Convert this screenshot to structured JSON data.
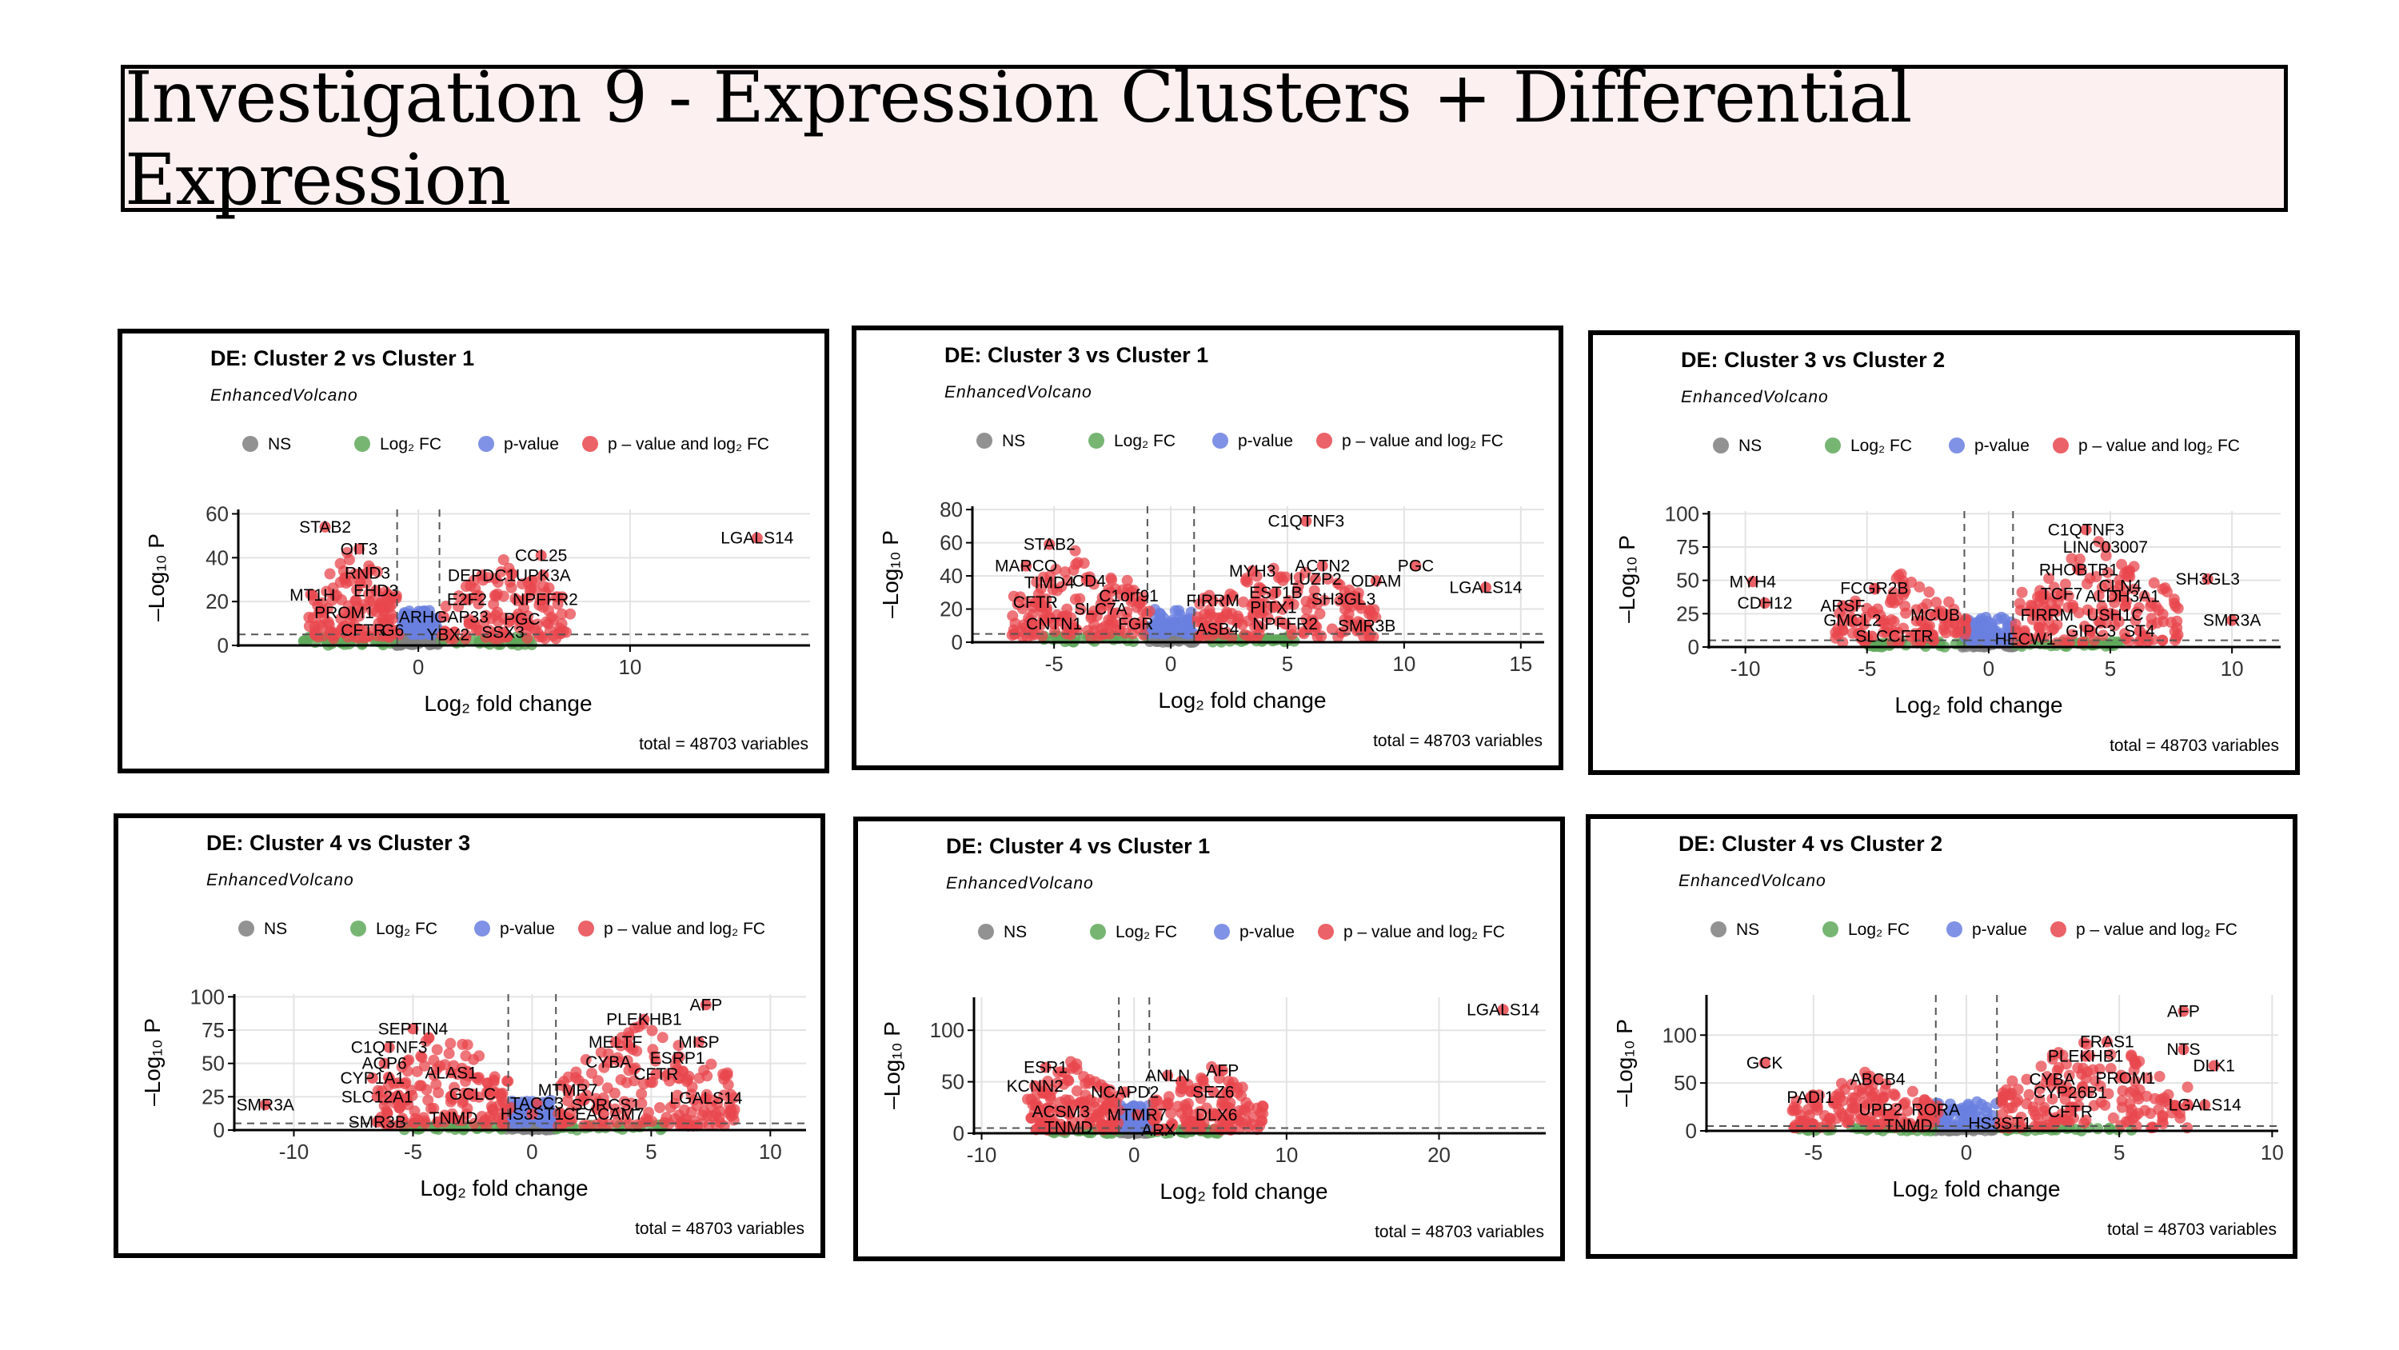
{
  "page": {
    "title": "Investigation 9 - Expression Clusters + Differential Expression"
  },
  "legend": {
    "items": [
      {
        "label": "NS",
        "color": "#7f7f7f"
      },
      {
        "label": "Log₂ FC",
        "color": "#5fa85a"
      },
      {
        "label": "p-value",
        "color": "#6a7fe0"
      },
      {
        "label": "p – value and log₂ FC",
        "color": "#e8474d"
      }
    ]
  },
  "chart_data": [
    {
      "type": "scatter",
      "title": "DE: Cluster 2 vs Cluster 1",
      "subtitle": "EnhancedVolcano",
      "xlabel": "Log₂ fold change",
      "ylabel": "–Log₁₀ P",
      "caption": "total = 48703 variables",
      "xlim": [
        -8.5,
        18.5
      ],
      "ylim": [
        0,
        62
      ],
      "xticks": [
        0,
        10
      ],
      "yticks": [
        0,
        20,
        40,
        60
      ],
      "fc_cutoff": 1,
      "p_cutoff_y": 5,
      "clusters": [
        {
          "x": [
            -5.2,
            -0.9
          ],
          "y": [
            3,
            46
          ],
          "n": 130
        },
        {
          "x": [
            1.1,
            7.2
          ],
          "y": [
            3,
            40
          ],
          "n": 120
        }
      ],
      "labels": [
        {
          "text": "STAB2",
          "x": -4.4,
          "y": 54
        },
        {
          "text": "OIT3",
          "x": -2.8,
          "y": 44
        },
        {
          "text": "RND3",
          "x": -2.4,
          "y": 33
        },
        {
          "text": "EHD3",
          "x": -2.0,
          "y": 25
        },
        {
          "text": "MT1H",
          "x": -5.0,
          "y": 23
        },
        {
          "text": "PROM1",
          "x": -3.5,
          "y": 15
        },
        {
          "text": "CFTR",
          "x": -2.6,
          "y": 7
        },
        {
          "text": "G6",
          "x": -1.2,
          "y": 7
        },
        {
          "text": "ARHGAP33",
          "x": 1.2,
          "y": 13
        },
        {
          "text": "YBX2",
          "x": 1.4,
          "y": 5
        },
        {
          "text": "DEPDC1",
          "x": 3.0,
          "y": 32
        },
        {
          "text": "UPK3A",
          "x": 5.9,
          "y": 32
        },
        {
          "text": "CCL25",
          "x": 5.8,
          "y": 41
        },
        {
          "text": "E2F2",
          "x": 2.3,
          "y": 21
        },
        {
          "text": "NPFFR2",
          "x": 6.0,
          "y": 21
        },
        {
          "text": "PGC",
          "x": 4.9,
          "y": 12
        },
        {
          "text": "SSX3",
          "x": 4.0,
          "y": 6
        },
        {
          "text": "LGALS14",
          "x": 16.0,
          "y": 49
        }
      ]
    },
    {
      "type": "scatter",
      "title": "DE: Cluster 3 vs Cluster 1",
      "subtitle": "EnhancedVolcano",
      "xlabel": "Log₂ fold change",
      "ylabel": "–Log₁₀ P",
      "caption": "total = 48703 variables",
      "xlim": [
        -8.5,
        16
      ],
      "ylim": [
        0,
        82
      ],
      "xticks": [
        -5,
        0,
        5,
        10,
        15
      ],
      "yticks": [
        0,
        20,
        40,
        60,
        80
      ],
      "fc_cutoff": 1,
      "p_cutoff_y": 5,
      "clusters": [
        {
          "x": [
            -6.8,
            -0.9
          ],
          "y": [
            3,
            58
          ],
          "n": 140
        },
        {
          "x": [
            1.1,
            8.8
          ],
          "y": [
            3,
            52
          ],
          "n": 150
        }
      ],
      "labels": [
        {
          "text": "C1QTNF3",
          "x": 5.8,
          "y": 73
        },
        {
          "text": "STAB2",
          "x": -5.2,
          "y": 59
        },
        {
          "text": "MARCO",
          "x": -6.2,
          "y": 46
        },
        {
          "text": "TIMD4",
          "x": -5.2,
          "y": 36
        },
        {
          "text": "CD4",
          "x": -3.5,
          "y": 37
        },
        {
          "text": "C1orf91",
          "x": -1.8,
          "y": 28
        },
        {
          "text": "CFTR",
          "x": -5.8,
          "y": 24
        },
        {
          "text": "SLC7A",
          "x": -3.0,
          "y": 20
        },
        {
          "text": "CNTN1",
          "x": -5.0,
          "y": 11
        },
        {
          "text": "FGR",
          "x": -1.5,
          "y": 11
        },
        {
          "text": "MYH3",
          "x": 3.5,
          "y": 43
        },
        {
          "text": "ACTN2",
          "x": 6.5,
          "y": 46
        },
        {
          "text": "PGC",
          "x": 10.5,
          "y": 46
        },
        {
          "text": "LUZP2",
          "x": 6.2,
          "y": 38
        },
        {
          "text": "ODAM",
          "x": 8.8,
          "y": 37
        },
        {
          "text": "FIRRM",
          "x": 1.8,
          "y": 25
        },
        {
          "text": "EST1B",
          "x": 4.5,
          "y": 30
        },
        {
          "text": "PITX1",
          "x": 4.4,
          "y": 21
        },
        {
          "text": "SH3GL3",
          "x": 7.4,
          "y": 26
        },
        {
          "text": "ASB4",
          "x": 2.0,
          "y": 8
        },
        {
          "text": "NPFFR2",
          "x": 4.9,
          "y": 11
        },
        {
          "text": "SMR3B",
          "x": 8.4,
          "y": 10
        },
        {
          "text": "LGALS14",
          "x": 13.5,
          "y": 33
        }
      ]
    },
    {
      "type": "scatter",
      "title": "DE: Cluster 3 vs Cluster 2",
      "subtitle": "EnhancedVolcano",
      "xlabel": "Log₂ fold change",
      "ylabel": "–Log₁₀ P",
      "caption": "total = 48703 variables",
      "xlim": [
        -11.5,
        12
      ],
      "ylim": [
        0,
        102
      ],
      "xticks": [
        -10,
        -5,
        0,
        5,
        10
      ],
      "yticks": [
        0,
        25,
        50,
        75,
        100
      ],
      "fc_cutoff": 1,
      "p_cutoff_y": 5,
      "clusters": [
        {
          "x": [
            -6.3,
            -0.9
          ],
          "y": [
            3,
            55
          ],
          "n": 120
        },
        {
          "x": [
            1.1,
            7.8
          ],
          "y": [
            3,
            80
          ],
          "n": 150
        }
      ],
      "labels": [
        {
          "text": "C1QTNF3",
          "x": 4.0,
          "y": 88
        },
        {
          "text": "LINC03007",
          "x": 4.8,
          "y": 75
        },
        {
          "text": "RHOBTB1",
          "x": 3.7,
          "y": 58
        },
        {
          "text": "SH3GL3",
          "x": 9.0,
          "y": 51
        },
        {
          "text": "CLN4",
          "x": 5.4,
          "y": 46
        },
        {
          "text": "TCF7",
          "x": 3.0,
          "y": 40
        },
        {
          "text": "ALDH3A1",
          "x": 5.5,
          "y": 38
        },
        {
          "text": "FIRRM",
          "x": 2.4,
          "y": 24
        },
        {
          "text": "USH1C",
          "x": 5.2,
          "y": 24
        },
        {
          "text": "GIPC3",
          "x": 4.2,
          "y": 12
        },
        {
          "text": "ST4",
          "x": 6.2,
          "y": 12
        },
        {
          "text": "SMR3A",
          "x": 10.0,
          "y": 20
        },
        {
          "text": "MYH4",
          "x": -9.7,
          "y": 49
        },
        {
          "text": "CDH12",
          "x": -9.2,
          "y": 33
        },
        {
          "text": "FCGR2B",
          "x": -4.7,
          "y": 44
        },
        {
          "text": "ARSF",
          "x": -6.0,
          "y": 31
        },
        {
          "text": "GMCL2",
          "x": -5.6,
          "y": 20
        },
        {
          "text": "MCUB",
          "x": -2.2,
          "y": 24
        },
        {
          "text": "SLC",
          "x": -4.8,
          "y": 8
        },
        {
          "text": "CFTR",
          "x": -3.2,
          "y": 8
        },
        {
          "text": "HECW1",
          "x": 1.5,
          "y": 6
        }
      ]
    },
    {
      "type": "scatter",
      "title": "DE: Cluster 4 vs Cluster 3",
      "subtitle": "EnhancedVolcano",
      "xlabel": "Log₂ fold change",
      "ylabel": "–Log₁₀ P",
      "caption": "total = 48703 variables",
      "xlim": [
        -12.5,
        11.5
      ],
      "ylim": [
        0,
        102
      ],
      "xticks": [
        -10,
        -5,
        0,
        5,
        10
      ],
      "yticks": [
        0,
        25,
        50,
        75,
        100
      ],
      "fc_cutoff": 1,
      "p_cutoff_y": 5,
      "clusters": [
        {
          "x": [
            -6.5,
            -0.9
          ],
          "y": [
            3,
            80
          ],
          "n": 150
        },
        {
          "x": [
            1.1,
            8.5
          ],
          "y": [
            3,
            85
          ],
          "n": 170
        }
      ],
      "labels": [
        {
          "text": "AFP",
          "x": 7.3,
          "y": 94
        },
        {
          "text": "SEPTIN4",
          "x": -5.0,
          "y": 76
        },
        {
          "text": "PLEKHB1",
          "x": 4.7,
          "y": 83
        },
        {
          "text": "C1QTNF3",
          "x": -6.0,
          "y": 62
        },
        {
          "text": "MELTF",
          "x": 3.5,
          "y": 66
        },
        {
          "text": "MISP",
          "x": 7.0,
          "y": 66
        },
        {
          "text": "AQP6",
          "x": -6.2,
          "y": 50
        },
        {
          "text": "ESRP1",
          "x": 6.1,
          "y": 54
        },
        {
          "text": "CYBA",
          "x": 3.2,
          "y": 51
        },
        {
          "text": "ALAS1",
          "x": -3.4,
          "y": 43
        },
        {
          "text": "CFTR",
          "x": 5.2,
          "y": 42
        },
        {
          "text": "CYP1A1",
          "x": -6.7,
          "y": 39
        },
        {
          "text": "MTMR7",
          "x": 1.5,
          "y": 30
        },
        {
          "text": "SLC12A1",
          "x": -6.5,
          "y": 25
        },
        {
          "text": "GCLC",
          "x": -2.5,
          "y": 27
        },
        {
          "text": "TACC3",
          "x": 0.2,
          "y": 20
        },
        {
          "text": "SORCS1",
          "x": 3.1,
          "y": 19
        },
        {
          "text": "LGALS14",
          "x": 7.3,
          "y": 24
        },
        {
          "text": "SMR3A",
          "x": -11.2,
          "y": 19
        },
        {
          "text": "SMR3B",
          "x": -6.5,
          "y": 6
        },
        {
          "text": "TNMD",
          "x": -3.3,
          "y": 9
        },
        {
          "text": "HS3ST1",
          "x": 0.0,
          "y": 12
        },
        {
          "text": "CEACAM7",
          "x": 3.0,
          "y": 12
        }
      ]
    },
    {
      "type": "scatter",
      "title": "DE: Cluster 4 vs Cluster 1",
      "subtitle": "EnhancedVolcano",
      "xlabel": "Log₂ fold change",
      "ylabel": "–Log₁₀ P",
      "caption": "total = 48703 variables",
      "xlim": [
        -10.5,
        27
      ],
      "ylim": [
        0,
        132
      ],
      "xticks": [
        -10,
        0,
        10,
        20
      ],
      "yticks": [
        0,
        50,
        100
      ],
      "fc_cutoff": 1,
      "p_cutoff_y": 5,
      "clusters": [
        {
          "x": [
            -7.0,
            -0.9
          ],
          "y": [
            3,
            75
          ],
          "n": 130
        },
        {
          "x": [
            1.1,
            8.5
          ],
          "y": [
            3,
            70
          ],
          "n": 130
        }
      ],
      "labels": [
        {
          "text": "LGALS14",
          "x": 24.2,
          "y": 120
        },
        {
          "text": "ESR1",
          "x": -5.8,
          "y": 64
        },
        {
          "text": "KCNN2",
          "x": -6.5,
          "y": 46
        },
        {
          "text": "ANLN",
          "x": 2.2,
          "y": 56
        },
        {
          "text": "AFP",
          "x": 5.8,
          "y": 61
        },
        {
          "text": "NCAPD2",
          "x": -0.6,
          "y": 40
        },
        {
          "text": "SEZ6",
          "x": 5.2,
          "y": 40
        },
        {
          "text": "ACSM3",
          "x": -4.8,
          "y": 21
        },
        {
          "text": "MTMR7",
          "x": 0.2,
          "y": 18
        },
        {
          "text": "DLX6",
          "x": 5.4,
          "y": 18
        },
        {
          "text": "TNMD",
          "x": -4.3,
          "y": 6
        },
        {
          "text": "ARX",
          "x": 1.6,
          "y": 3
        }
      ]
    },
    {
      "type": "scatter",
      "title": "DE: Cluster 4 vs Cluster 2",
      "subtitle": "EnhancedVolcano",
      "xlabel": "Log₂ fold change",
      "ylabel": "–Log₁₀ P",
      "caption": "total = 48703 variables",
      "xlim": [
        -8.5,
        10.2
      ],
      "ylim": [
        0,
        142
      ],
      "xticks": [
        -5,
        0,
        5,
        10
      ],
      "yticks": [
        0,
        50,
        100
      ],
      "fc_cutoff": 1,
      "p_cutoff_y": 5,
      "clusters": [
        {
          "x": [
            -5.7,
            -0.9
          ],
          "y": [
            3,
            62
          ],
          "n": 140
        },
        {
          "x": [
            1.1,
            7.3
          ],
          "y": [
            3,
            105
          ],
          "n": 160
        }
      ],
      "labels": [
        {
          "text": "AFP",
          "x": 7.1,
          "y": 125
        },
        {
          "text": "FRAS1",
          "x": 4.6,
          "y": 93
        },
        {
          "text": "NTS",
          "x": 7.1,
          "y": 85
        },
        {
          "text": "PLEKHB1",
          "x": 3.9,
          "y": 78
        },
        {
          "text": "DLK1",
          "x": 8.1,
          "y": 68
        },
        {
          "text": "GCK",
          "x": -6.6,
          "y": 71
        },
        {
          "text": "PROM1",
          "x": 5.2,
          "y": 55
        },
        {
          "text": "ABCB4",
          "x": -2.9,
          "y": 54
        },
        {
          "text": "CYBA",
          "x": 2.8,
          "y": 54
        },
        {
          "text": "CYP26B1",
          "x": 3.4,
          "y": 40
        },
        {
          "text": "PADI1",
          "x": -5.1,
          "y": 35
        },
        {
          "text": "UPP2",
          "x": -2.8,
          "y": 22
        },
        {
          "text": "RORA",
          "x": -1.0,
          "y": 22
        },
        {
          "text": "CFTR",
          "x": 3.4,
          "y": 20
        },
        {
          "text": "LGALS14",
          "x": 7.8,
          "y": 27
        },
        {
          "text": "TNMD",
          "x": -1.9,
          "y": 6
        },
        {
          "text": "HS3ST1",
          "x": 1.1,
          "y": 8
        }
      ]
    }
  ]
}
